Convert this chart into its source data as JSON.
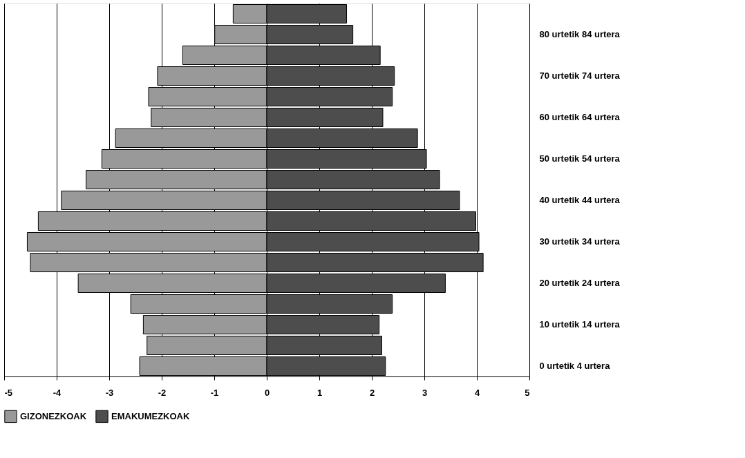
{
  "chart_data": {
    "type": "bar",
    "orientation": "horizontal",
    "categories": [
      null,
      "80 urtetik 84 urtera",
      null,
      "70 urtetik 74 urtera",
      null,
      "60 urtetik 64 urtera",
      null,
      "50 urtetik 54 urtera",
      null,
      "40 urtetik 44 urtera",
      null,
      "30 urtetik 34 urtera",
      null,
      "20 urtetik 24 urtera",
      null,
      "10 urtetik 14 urtera",
      null,
      "0 urtetik 4 urtera"
    ],
    "series": [
      {
        "name": "GIZONEZKOAK",
        "color": "#999999",
        "values": [
          -0.64,
          -0.99,
          -1.6,
          -2.08,
          -2.25,
          -2.2,
          -2.88,
          -3.14,
          -3.44,
          -3.91,
          -4.35,
          -4.56,
          -4.5,
          -3.59,
          -2.59,
          -2.35,
          -2.28,
          -2.42
        ]
      },
      {
        "name": "EMAKUMEZKOAK",
        "color": "#4d4d4d",
        "values": [
          1.52,
          1.64,
          2.16,
          2.43,
          2.39,
          2.21,
          2.87,
          3.04,
          3.29,
          3.67,
          3.98,
          4.04,
          4.12,
          3.4,
          2.39,
          2.14,
          2.19,
          2.26
        ]
      }
    ],
    "xlim": [
      -5,
      5
    ],
    "xticks": [
      -5,
      -4,
      -3,
      -2,
      -1,
      0,
      1,
      2,
      3,
      4,
      5
    ],
    "grid": "x",
    "legend": "bottom",
    "stacked": true
  }
}
